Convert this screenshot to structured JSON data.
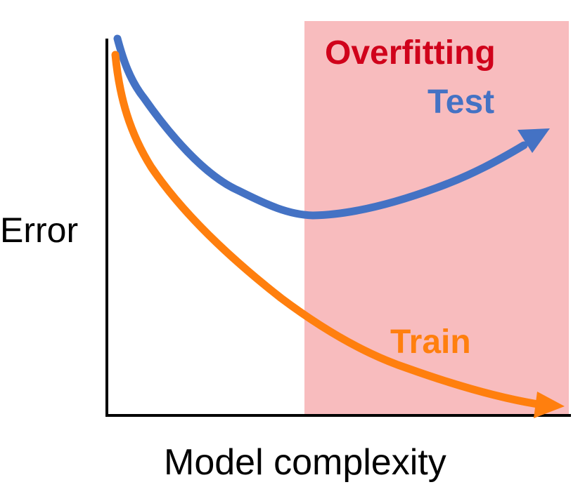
{
  "diagram": {
    "region_label": "Overfitting",
    "y_axis_label": "Error",
    "x_axis_label": "Model complexity",
    "curves": [
      {
        "name": "Test",
        "color": "#4472C4"
      },
      {
        "name": "Train",
        "color": "#FF7F0E"
      }
    ],
    "colors": {
      "region_fill": "#F8BCBE",
      "region_label": "#D0021B",
      "axis": "#000000"
    }
  }
}
